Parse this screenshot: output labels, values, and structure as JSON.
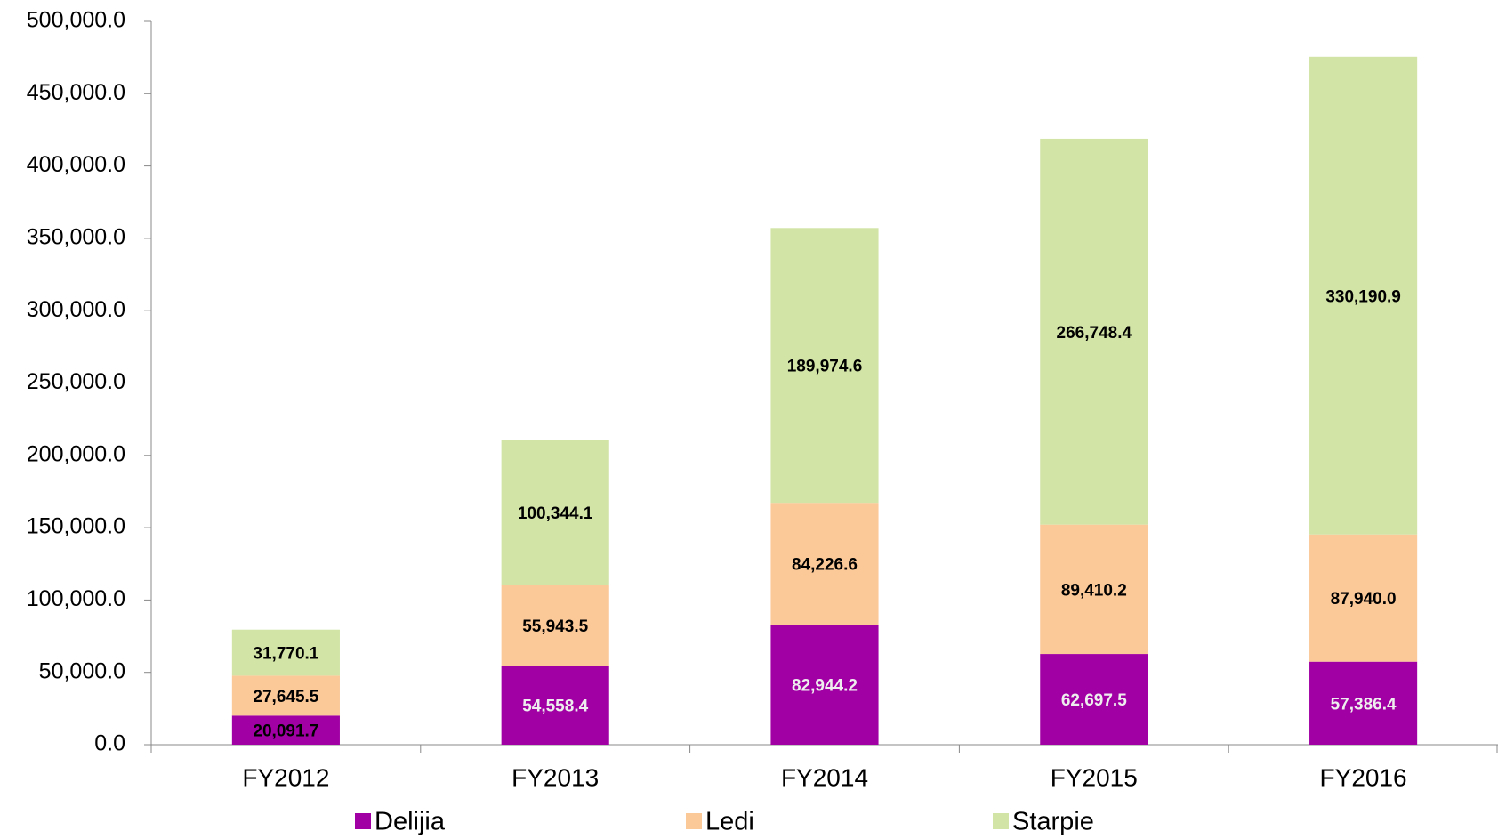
{
  "chart_data": {
    "type": "bar",
    "stacked": true,
    "categories": [
      "FY2012",
      "FY2013",
      "FY2014",
      "FY2015",
      "FY2016"
    ],
    "series": [
      {
        "name": "Delijia",
        "color": "#a100a5",
        "values": [
          20091.7,
          54558.4,
          82944.2,
          62697.5,
          57386.4
        ],
        "value_labels": [
          "20,091.7",
          "54,558.4",
          "82,944.2",
          "62,697.5",
          "57,386.4"
        ]
      },
      {
        "name": "Ledi",
        "color": "#fbc898",
        "values": [
          27645.5,
          55943.5,
          84226.6,
          89410.2,
          87940.0
        ],
        "value_labels": [
          "27,645.5",
          "55,943.5",
          "84,226.6",
          "89,410.2",
          "87,940.0"
        ]
      },
      {
        "name": "Starpie",
        "color": "#d2e4a6",
        "values": [
          31770.1,
          100344.1,
          189974.6,
          266748.4,
          330190.9
        ],
        "value_labels": [
          "31,770.1",
          "100,344.1",
          "189,974.6",
          "266,748.4",
          "330,190.9"
        ]
      }
    ],
    "ylim": [
      0,
      500000
    ],
    "yticks": [
      {
        "value": 0,
        "label": "0.0"
      },
      {
        "value": 50000,
        "label": "50,000.0"
      },
      {
        "value": 100000,
        "label": "100,000.0"
      },
      {
        "value": 150000,
        "label": "150,000.0"
      },
      {
        "value": 200000,
        "label": "200,000.0"
      },
      {
        "value": 250000,
        "label": "250,000.0"
      },
      {
        "value": 300000,
        "label": "300,000.0"
      },
      {
        "value": 350000,
        "label": "350,000.0"
      },
      {
        "value": 400000,
        "label": "400,000.0"
      },
      {
        "value": 450000,
        "label": "450,000.0"
      },
      {
        "value": 500000,
        "label": "500,000.0"
      }
    ],
    "legend": "bottom"
  }
}
